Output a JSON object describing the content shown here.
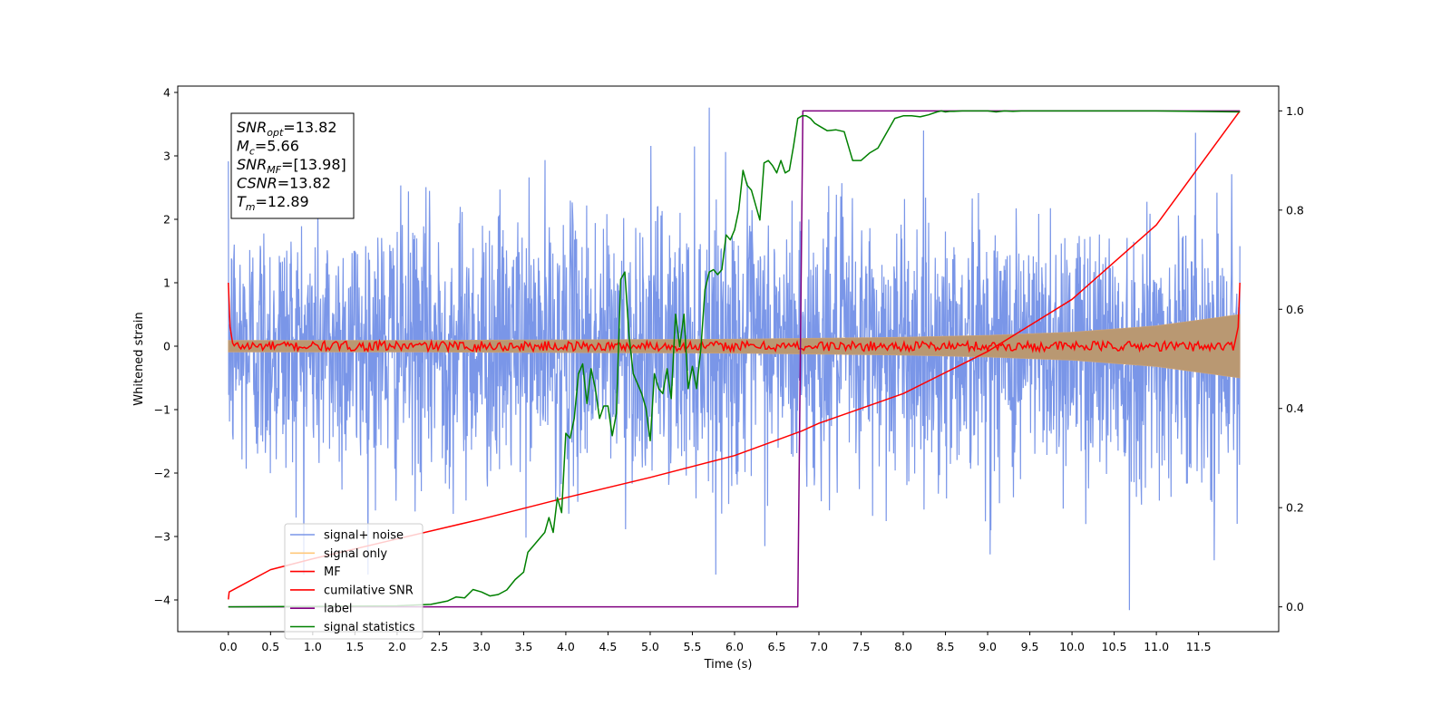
{
  "chart_data": {
    "type": "line",
    "xlabel": "Time (s)",
    "ylabel": "Whitened strain",
    "xlim": [
      -0.6,
      12.45
    ],
    "ylim": [
      -4.5,
      4.1
    ],
    "y2lim": [
      -0.05,
      1.05
    ],
    "x_ticks": [
      0.0,
      0.5,
      1.0,
      1.5,
      2.0,
      2.5,
      3.0,
      3.5,
      4.0,
      4.5,
      5.0,
      5.5,
      6.0,
      6.5,
      7.0,
      7.5,
      8.0,
      8.5,
      9.0,
      9.5,
      10.0,
      10.5,
      11.0,
      11.5
    ],
    "x_tick_labels": [
      "0.0",
      "0.5",
      "1.0",
      "1.5",
      "2.0",
      "2.5",
      "3.0",
      "3.5",
      "4.0",
      "4.5",
      "5.0",
      "5.5",
      "6.0",
      "6.5",
      "7.0",
      "7.5",
      "8.0",
      "8.5",
      "9.0",
      "9.5",
      "10.0",
      "10.5",
      "11.0",
      "11.5"
    ],
    "y_ticks": [
      -4,
      -3,
      -2,
      -1,
      0,
      1,
      2,
      3,
      4
    ],
    "y_tick_labels": [
      "−4",
      "−3",
      "−2",
      "−1",
      "0",
      "1",
      "2",
      "3",
      "4"
    ],
    "y2_ticks": [
      0.0,
      0.2,
      0.4,
      0.6,
      0.8,
      1.0
    ],
    "y2_tick_labels": [
      "0.0",
      "0.2",
      "0.4",
      "0.6",
      "0.8",
      "1.0"
    ],
    "grid": false,
    "legend_position": "lower-left",
    "legend": [
      {
        "label": "signal+ noise",
        "color": "#7a96e8"
      },
      {
        "label": "signal only",
        "color": "#ffc87a"
      },
      {
        "label": "MF",
        "color": "#ff0000"
      },
      {
        "label": "cumilative SNR",
        "color": "#ff0000"
      },
      {
        "label": "label",
        "color": "#800080"
      },
      {
        "label": "signal statistics",
        "color": "#008000"
      }
    ],
    "annotation": [
      {
        "main": "SNR",
        "sub": "opt",
        "rest": "=13.82"
      },
      {
        "main": "M",
        "sub": "c",
        "rest": "=5.66"
      },
      {
        "main": "SNR",
        "sub": "MF",
        "rest": "=[13.98]"
      },
      {
        "main": "CSNR",
        "sub": "",
        "rest": "=13.82"
      },
      {
        "main": "T",
        "sub": "m",
        "rest": "=12.89"
      }
    ],
    "series": [
      {
        "name": "signal+ noise",
        "axis": "left",
        "color": "#7a96e8",
        "x_range": [
          0.0,
          11.99
        ],
        "amplitude_range": [
          -4.16,
          3.76
        ],
        "description_values": {
          "typical_band": [
            -2.0,
            2.0
          ],
          "max": 3.76,
          "max_x": 5.7,
          "min": -4.16,
          "min_x": 10.68
        }
      },
      {
        "name": "signal only",
        "axis": "left",
        "color": "#ffc87a",
        "x_range": [
          0.0,
          11.99
        ],
        "envelope": {
          "x": [
            0,
            2,
            4,
            6,
            8,
            9,
            10,
            11,
            11.99
          ],
          "amp": [
            0.09,
            0.09,
            0.1,
            0.11,
            0.14,
            0.17,
            0.22,
            0.32,
            0.5
          ]
        }
      },
      {
        "name": "MF",
        "axis": "left",
        "color": "#ff0000",
        "x": [
          0.0,
          0.02,
          0.05,
          11.93,
          11.97,
          11.99
        ],
        "y": [
          1.0,
          0.3,
          0.05,
          0.05,
          0.3,
          1.0
        ],
        "baseline": 0.0,
        "noise_amp": 0.06
      },
      {
        "name": "cumilative SNR",
        "axis": "right",
        "color": "#ff0000",
        "x": [
          0.0,
          0.01,
          0.5,
          1.0,
          2.0,
          3.0,
          4.0,
          5.0,
          6.0,
          6.8,
          7.0,
          8.0,
          9.0,
          10.0,
          11.0,
          11.99
        ],
        "y": [
          0.015,
          0.03,
          0.075,
          0.097,
          0.137,
          0.177,
          0.22,
          0.261,
          0.305,
          0.355,
          0.37,
          0.43,
          0.515,
          0.62,
          0.77,
          1.0
        ]
      },
      {
        "name": "label",
        "axis": "right",
        "color": "#800080",
        "x": [
          0.0,
          6.75,
          6.81,
          11.99
        ],
        "y": [
          0.0,
          0.0,
          1.0,
          1.0
        ]
      },
      {
        "name": "signal statistics",
        "axis": "right",
        "color": "#008000",
        "x": [
          0.0,
          1.0,
          2.0,
          2.4,
          2.6,
          2.7,
          2.8,
          2.9,
          3.0,
          3.1,
          3.2,
          3.3,
          3.4,
          3.5,
          3.55,
          3.6,
          3.7,
          3.75,
          3.8,
          3.85,
          3.9,
          3.95,
          4.0,
          4.05,
          4.1,
          4.15,
          4.2,
          4.25,
          4.3,
          4.35,
          4.4,
          4.45,
          4.5,
          4.55,
          4.6,
          4.65,
          4.7,
          4.75,
          4.8,
          4.85,
          4.9,
          4.95,
          5.0,
          5.05,
          5.1,
          5.15,
          5.2,
          5.25,
          5.3,
          5.35,
          5.4,
          5.45,
          5.5,
          5.55,
          5.6,
          5.65,
          5.7,
          5.75,
          5.8,
          5.85,
          5.9,
          5.95,
          6.0,
          6.05,
          6.1,
          6.15,
          6.2,
          6.3,
          6.35,
          6.4,
          6.45,
          6.5,
          6.55,
          6.6,
          6.65,
          6.7,
          6.75,
          6.8,
          6.85,
          6.9,
          6.95,
          7.0,
          7.1,
          7.2,
          7.3,
          7.4,
          7.5,
          7.6,
          7.7,
          7.8,
          7.9,
          8.0,
          8.1,
          8.2,
          8.3,
          8.4,
          8.45,
          8.5,
          8.55,
          8.6,
          8.7,
          8.8,
          8.9,
          9.0,
          9.1,
          9.2,
          9.3,
          9.4,
          9.6,
          10.0,
          11.0,
          11.99
        ],
        "y": [
          0.0,
          0.001,
          0.002,
          0.005,
          0.012,
          0.02,
          0.018,
          0.035,
          0.03,
          0.022,
          0.025,
          0.034,
          0.055,
          0.07,
          0.11,
          0.12,
          0.14,
          0.15,
          0.18,
          0.15,
          0.22,
          0.19,
          0.35,
          0.34,
          0.38,
          0.47,
          0.49,
          0.41,
          0.48,
          0.44,
          0.38,
          0.405,
          0.405,
          0.345,
          0.39,
          0.66,
          0.675,
          0.545,
          0.47,
          0.45,
          0.43,
          0.4,
          0.335,
          0.47,
          0.44,
          0.43,
          0.48,
          0.42,
          0.59,
          0.525,
          0.59,
          0.44,
          0.485,
          0.44,
          0.52,
          0.64,
          0.675,
          0.68,
          0.67,
          0.68,
          0.75,
          0.74,
          0.76,
          0.8,
          0.88,
          0.85,
          0.84,
          0.78,
          0.895,
          0.9,
          0.89,
          0.875,
          0.9,
          0.875,
          0.88,
          0.93,
          0.985,
          0.99,
          0.99,
          0.985,
          0.975,
          0.97,
          0.96,
          0.962,
          0.958,
          0.9,
          0.9,
          0.915,
          0.925,
          0.955,
          0.985,
          0.99,
          0.99,
          0.988,
          0.992,
          0.998,
          1.0,
          0.998,
          0.999,
          0.999,
          1.0,
          1.0,
          1.0,
          1.0,
          0.998,
          1.0,
          0.999,
          1.0,
          1.0,
          1.0,
          1.0,
          0.998
        ]
      }
    ]
  }
}
